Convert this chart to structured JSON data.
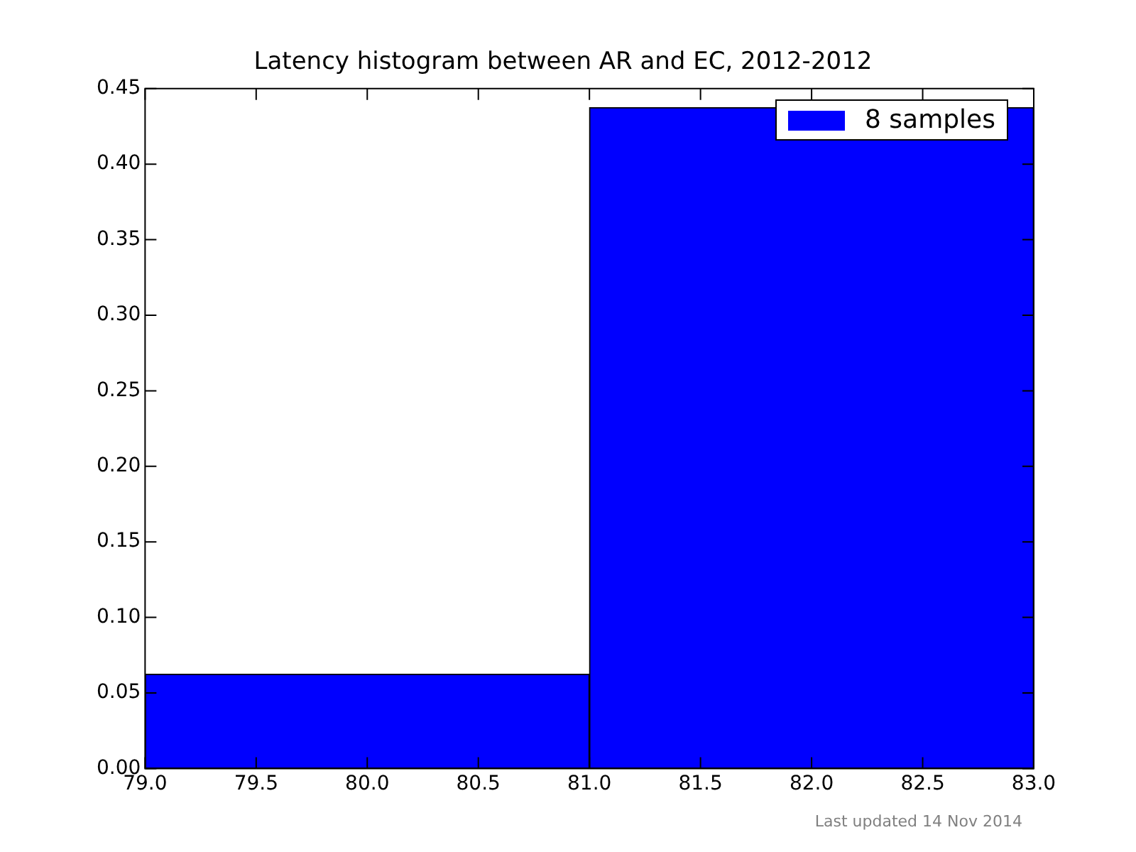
{
  "chart_data": {
    "type": "histogram",
    "title": "Latency histogram between AR and EC, 2012-2012",
    "bins": [
      79,
      81,
      83
    ],
    "series": [
      {
        "name": "8 samples",
        "color": "#0000ff",
        "values": [
          0.0625,
          0.4375
        ]
      }
    ],
    "xlim": [
      79,
      83
    ],
    "xticks": [
      {
        "value": 79,
        "label": "79.0"
      },
      {
        "value": 79.5,
        "label": "79.5"
      },
      {
        "value": 80,
        "label": "80.0"
      },
      {
        "value": 80.5,
        "label": "80.5"
      },
      {
        "value": 81,
        "label": "81.0"
      },
      {
        "value": 81.5,
        "label": "81.5"
      },
      {
        "value": 82,
        "label": "82.0"
      },
      {
        "value": 82.5,
        "label": "82.5"
      },
      {
        "value": 83,
        "label": "83.0"
      }
    ],
    "ylim": [
      0,
      0.45
    ],
    "yticks": [
      {
        "value": 0,
        "label": "0.00"
      },
      {
        "value": 0.05,
        "label": "0.05"
      },
      {
        "value": 0.1,
        "label": "0.10"
      },
      {
        "value": 0.15,
        "label": "0.15"
      },
      {
        "value": 0.2,
        "label": "0.20"
      },
      {
        "value": 0.25,
        "label": "0.25"
      },
      {
        "value": 0.3,
        "label": "0.30"
      },
      {
        "value": 0.35,
        "label": "0.35"
      },
      {
        "value": 0.4,
        "label": "0.40"
      },
      {
        "value": 0.45,
        "label": "0.45"
      }
    ],
    "grid": false,
    "legend": "top right",
    "annotations": [
      "Last updated 14 Nov 2014"
    ]
  }
}
